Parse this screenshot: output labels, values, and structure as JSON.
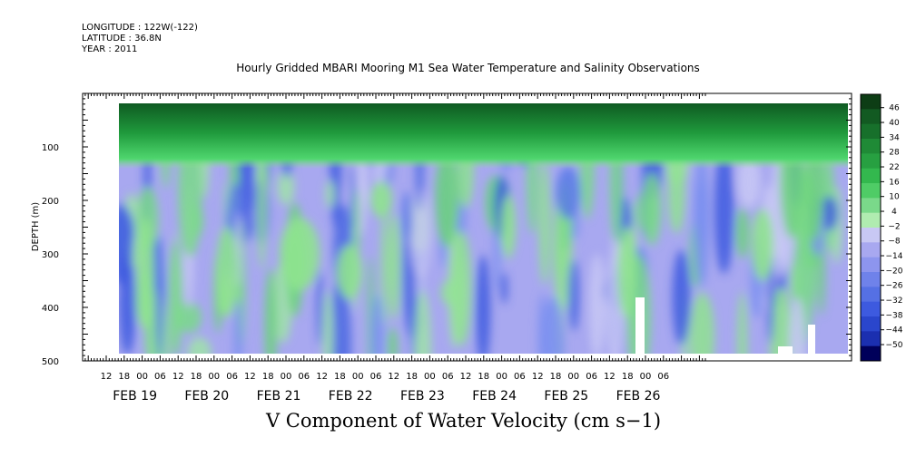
{
  "header": {
    "longitude": "LONGITUDE : 122W(-122)",
    "latitude": "LATITUDE : 36.8N",
    "year": "YEAR : 2011"
  },
  "colors": {
    "dark_green": "#0d3d15",
    "green": "#2ecc55",
    "light_green": "#8fe38f",
    "lavender": "#a8a8f0",
    "blue": "#3a5ce0",
    "navy": "#00005a"
  },
  "chart_data": {
    "type": "heatmap",
    "title": "Hourly Gridded MBARI Mooring M1 Sea Water Temperature and Salinity Observations",
    "xlabel": "V Component of Water Velocity (cm s−1)",
    "ylabel": "DEPTH (m)",
    "y_axis": {
      "range": [
        500,
        0
      ],
      "ticks": [
        100,
        200,
        300,
        400,
        500
      ],
      "tick_labels": [
        "100",
        "200",
        "300",
        "400",
        "500"
      ]
    },
    "x_axis": {
      "range_hours": [
        0,
        208
      ],
      "hour_tick_labels": [
        "12",
        "18",
        "00",
        "06",
        "12",
        "18",
        "00",
        "06",
        "12",
        "18",
        "00",
        "06",
        "12",
        "18",
        "00",
        "06",
        "12",
        "18",
        "00",
        "06",
        "12",
        "18",
        "00",
        "06",
        "12",
        "18",
        "00",
        "06",
        "12",
        "18",
        "00",
        "06"
      ],
      "date_labels": [
        "FEB 19",
        "FEB 20",
        "FEB 21",
        "FEB 22",
        "FEB 23",
        "FEB 24",
        "FEB 25",
        "FEB 26"
      ]
    },
    "data_extent": {
      "depth_min": 20,
      "depth_max": 485
    },
    "colorbar": {
      "labels": [
        "46",
        "40",
        "34",
        "28",
        "22",
        "16",
        "10",
        "4",
        "−2",
        "−8",
        "−14",
        "−20",
        "−26",
        "−32",
        "−38",
        "−44",
        "−50"
      ],
      "values": [
        46,
        40,
        34,
        28,
        22,
        16,
        10,
        4,
        -2,
        -8,
        -14,
        -20,
        -26,
        -32,
        -38,
        -44,
        -50
      ],
      "range": [
        -50,
        50
      ]
    },
    "pattern": {
      "surface_layer": "positive (green, up to ~40) from ~20 m to ~100 m",
      "deep_layer": "mostly negative (lavender to blue, ~-5 to -25) below ~150 m with patches of weak positive"
    }
  }
}
